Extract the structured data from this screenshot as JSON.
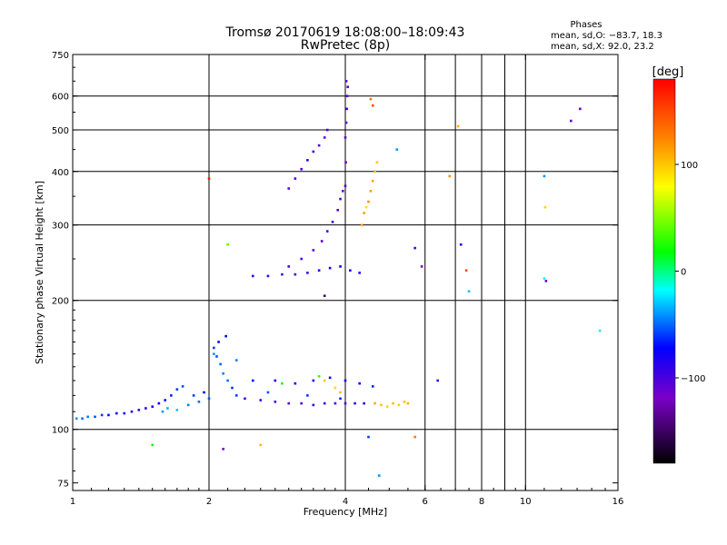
{
  "chart_data": {
    "type": "scatter",
    "title": "Tromsø 20170619 18:08:00–18:09:43",
    "subtitle": "RwPretec (8p)",
    "xlabel": "Frequency [MHz]",
    "ylabel": "Stationary phase Virtual Height [km]",
    "x_scale": "log",
    "y_scale": "log",
    "xlim": [
      1,
      16
    ],
    "ylim": [
      72,
      750
    ],
    "grid": true,
    "x_ticks": [
      1,
      2,
      4,
      6,
      8,
      10,
      16
    ],
    "x_tick_labels": [
      "1",
      "2",
      "4",
      "6",
      "8",
      "10",
      "16"
    ],
    "x_grid_lines": [
      2,
      4,
      6,
      7,
      8,
      9,
      10
    ],
    "y_ticks": [
      75,
      100,
      200,
      300,
      400,
      500,
      600,
      750
    ],
    "y_tick_labels": [
      "75",
      "100",
      "200",
      "300",
      "400",
      "500",
      "600",
      "750"
    ],
    "y_grid_lines": [
      100,
      200,
      300,
      400,
      500,
      600
    ],
    "phase_stats": {
      "heading": "Phases",
      "line_o": "mean, sd,O: −83.7, 18.3",
      "line_x": "mean, sd,X:  92.0, 23.2"
    },
    "colorbar": {
      "label": "[deg]",
      "range": [
        -180,
        180
      ],
      "ticks": [
        100,
        0,
        -100
      ],
      "tick_labels": [
        "100",
        "0",
        "−100"
      ]
    },
    "series": [
      {
        "color_by": "phase_deg",
        "points": [
          [
            1.02,
            106,
            -40
          ],
          [
            1.05,
            106,
            -50
          ],
          [
            1.08,
            107,
            -45
          ],
          [
            1.12,
            107,
            -55
          ],
          [
            1.16,
            108,
            -60
          ],
          [
            1.2,
            108,
            -70
          ],
          [
            1.25,
            109,
            -75
          ],
          [
            1.3,
            109,
            -80
          ],
          [
            1.35,
            110,
            -85
          ],
          [
            1.4,
            111,
            -90
          ],
          [
            1.45,
            112,
            -85
          ],
          [
            1.5,
            113,
            -80
          ],
          [
            1.55,
            115,
            -75
          ],
          [
            1.6,
            117,
            -70
          ],
          [
            1.65,
            120,
            -65
          ],
          [
            1.7,
            124,
            -60
          ],
          [
            1.75,
            126,
            -55
          ],
          [
            1.58,
            110,
            -40
          ],
          [
            1.62,
            112,
            -35
          ],
          [
            1.7,
            111,
            -30
          ],
          [
            1.8,
            114,
            -45
          ],
          [
            1.9,
            116,
            -50
          ],
          [
            2.0,
            118,
            -55
          ],
          [
            1.85,
            120,
            -60
          ],
          [
            1.95,
            122,
            -70
          ],
          [
            2.05,
            155,
            -60
          ],
          [
            2.08,
            148,
            -55
          ],
          [
            2.12,
            142,
            -50
          ],
          [
            2.15,
            135,
            -45
          ],
          [
            2.2,
            130,
            -50
          ],
          [
            2.25,
            125,
            -60
          ],
          [
            2.1,
            160,
            -70
          ],
          [
            2.18,
            165,
            -75
          ],
          [
            2.05,
            150,
            -40
          ],
          [
            2.3,
            145,
            -45
          ],
          [
            2.4,
            118,
            -100
          ],
          [
            2.6,
            117,
            -95
          ],
          [
            2.8,
            116,
            -100
          ],
          [
            3.0,
            115,
            -105
          ],
          [
            3.2,
            115,
            -100
          ],
          [
            3.4,
            114,
            -95
          ],
          [
            3.6,
            115,
            -90
          ],
          [
            3.8,
            115,
            -95
          ],
          [
            4.0,
            115,
            -100
          ],
          [
            4.2,
            115,
            -90
          ],
          [
            4.4,
            115,
            -85
          ],
          [
            2.5,
            130,
            -70
          ],
          [
            2.8,
            130,
            -75
          ],
          [
            3.1,
            128,
            -80
          ],
          [
            3.4,
            130,
            -85
          ],
          [
            3.7,
            132,
            -80
          ],
          [
            4.0,
            130,
            -75
          ],
          [
            4.3,
            128,
            -70
          ],
          [
            4.6,
            126,
            -65
          ],
          [
            2.3,
            120,
            -60
          ],
          [
            2.7,
            122,
            -55
          ],
          [
            3.3,
            120,
            -60
          ],
          [
            3.9,
            118,
            -65
          ],
          [
            3.6,
            130,
            100
          ],
          [
            3.8,
            125,
            95
          ],
          [
            3.9,
            122,
            105
          ],
          [
            4.65,
            115,
            110
          ],
          [
            4.8,
            114,
            100
          ],
          [
            4.95,
            113,
            95
          ],
          [
            5.1,
            115,
            105
          ],
          [
            5.25,
            114,
            98
          ],
          [
            5.4,
            116,
            102
          ],
          [
            5.5,
            115,
            108
          ],
          [
            3.5,
            133,
            30
          ],
          [
            2.9,
            128,
            20
          ],
          [
            2.5,
            228,
            -90
          ],
          [
            2.7,
            228,
            -95
          ],
          [
            2.9,
            230,
            -100
          ],
          [
            3.1,
            230,
            -95
          ],
          [
            3.3,
            232,
            -90
          ],
          [
            3.5,
            235,
            -85
          ],
          [
            3.7,
            238,
            -80
          ],
          [
            3.9,
            240,
            -75
          ],
          [
            4.1,
            235,
            -85
          ],
          [
            4.3,
            232,
            -90
          ],
          [
            3.0,
            240,
            -100
          ],
          [
            3.2,
            250,
            -105
          ],
          [
            3.4,
            262,
            -110
          ],
          [
            3.55,
            275,
            -105
          ],
          [
            3.65,
            290,
            -100
          ],
          [
            3.75,
            305,
            -95
          ],
          [
            3.85,
            325,
            -100
          ],
          [
            3.9,
            345,
            -105
          ],
          [
            3.95,
            360,
            -110
          ],
          [
            4.0,
            370,
            -100
          ],
          [
            3.0,
            365,
            -110
          ],
          [
            3.1,
            385,
            -105
          ],
          [
            3.2,
            405,
            -100
          ],
          [
            3.3,
            425,
            -95
          ],
          [
            3.4,
            445,
            -100
          ],
          [
            3.5,
            460,
            -105
          ],
          [
            3.6,
            480,
            -110
          ],
          [
            3.65,
            500,
            -100
          ],
          [
            4.0,
            480,
            -110
          ],
          [
            4.02,
            520,
            -105
          ],
          [
            4.03,
            560,
            -100
          ],
          [
            4.04,
            600,
            -110
          ],
          [
            4.05,
            630,
            -105
          ],
          [
            4.02,
            650,
            -100
          ],
          [
            4.01,
            420,
            -110
          ],
          [
            4.35,
            300,
            110
          ],
          [
            4.4,
            320,
            115
          ],
          [
            4.5,
            340,
            120
          ],
          [
            4.55,
            360,
            115
          ],
          [
            4.6,
            380,
            110
          ],
          [
            4.65,
            400,
            105
          ],
          [
            4.7,
            420,
            100
          ],
          [
            4.45,
            330,
            90
          ],
          [
            1.5,
            92,
            20
          ],
          [
            2.15,
            90,
            -120
          ],
          [
            2.6,
            92,
            105
          ],
          [
            4.5,
            96,
            -60
          ],
          [
            4.75,
            78,
            -40
          ],
          [
            5.7,
            96,
            130
          ],
          [
            6.4,
            130,
            -90
          ],
          [
            4.6,
            570,
            150
          ],
          [
            4.55,
            590,
            130
          ],
          [
            6.8,
            390,
            120
          ],
          [
            7.1,
            510,
            110
          ],
          [
            7.2,
            270,
            -80
          ],
          [
            7.4,
            235,
            150
          ],
          [
            7.5,
            210,
            -30
          ],
          [
            11.0,
            390,
            -40
          ],
          [
            11.05,
            330,
            95
          ],
          [
            11.0,
            225,
            -20
          ],
          [
            11.1,
            222,
            -110
          ],
          [
            12.6,
            525,
            -110
          ],
          [
            13.2,
            560,
            -110
          ],
          [
            14.6,
            170,
            -20
          ],
          [
            2.2,
            270,
            40
          ],
          [
            2.0,
            385,
            170
          ],
          [
            3.6,
            205,
            -150
          ],
          [
            5.2,
            450,
            -40
          ],
          [
            5.7,
            265,
            -100
          ],
          [
            5.9,
            240,
            -120
          ]
        ]
      }
    ]
  }
}
